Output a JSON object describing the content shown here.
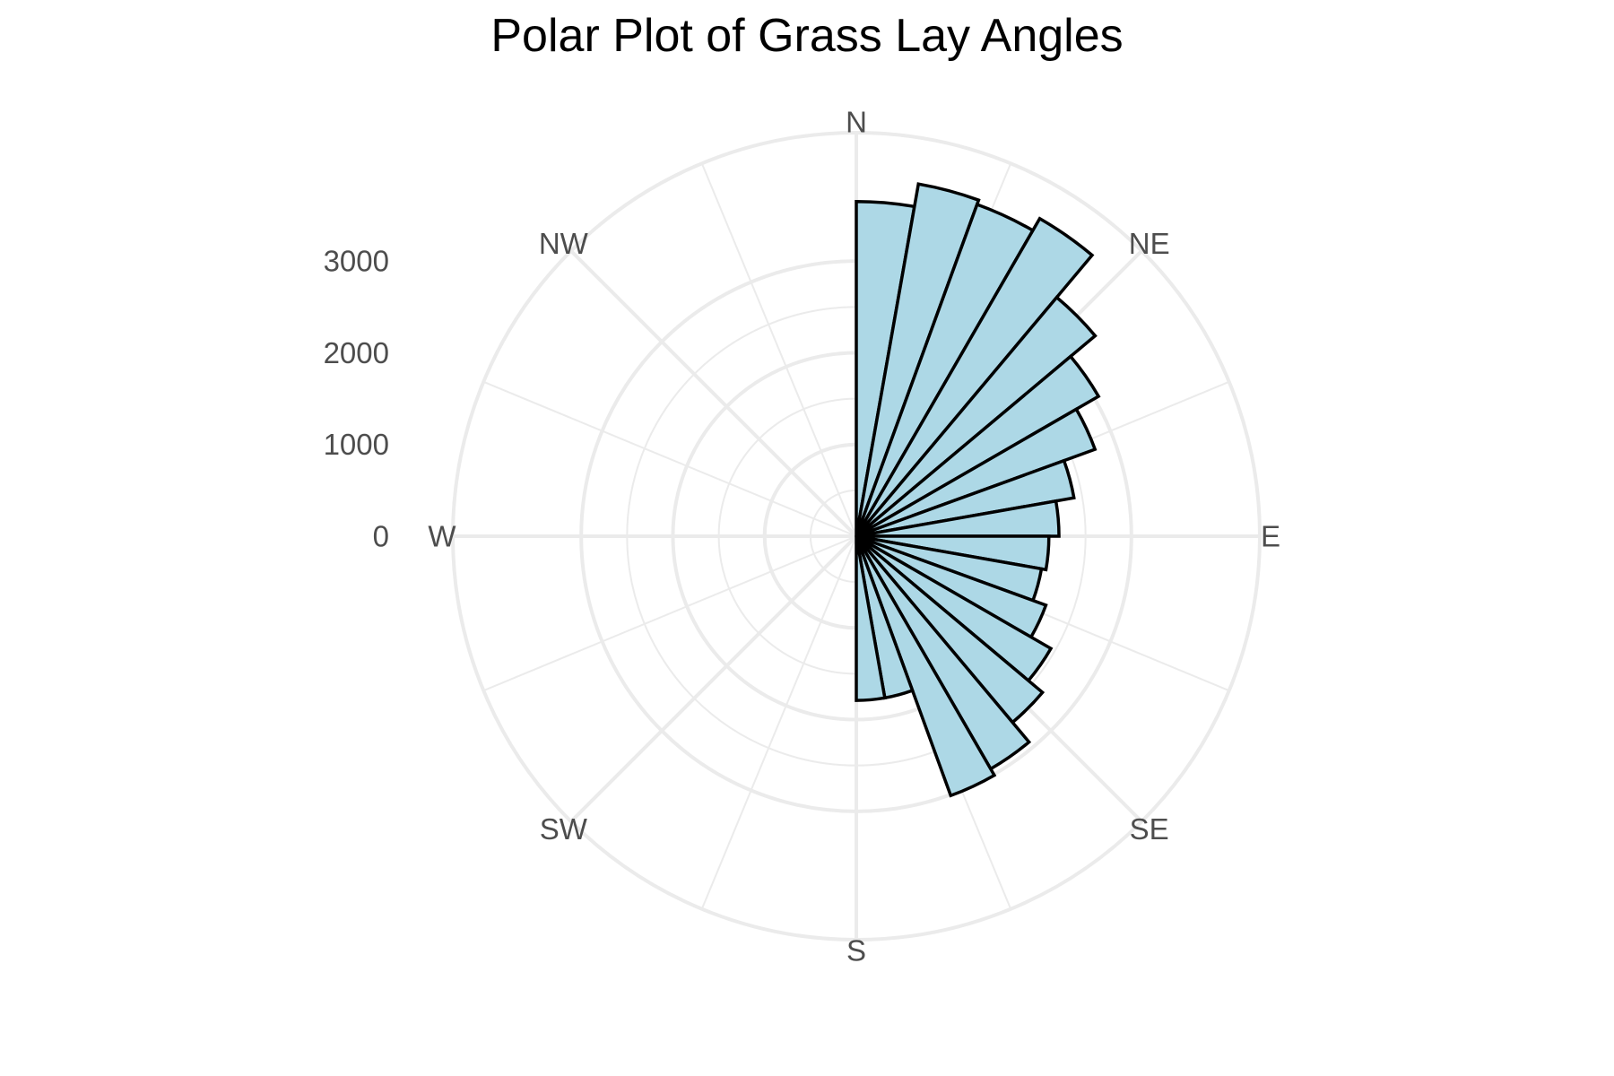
{
  "chart_data": {
    "type": "bar",
    "coordinate_system": "polar",
    "title": "Polar Plot of Grass Lay Angles",
    "xlabel": "",
    "ylabel": "",
    "x_unit": "degrees",
    "direction_labels": [
      "N",
      "NE",
      "E",
      "SE",
      "S",
      "SW",
      "W",
      "NW"
    ],
    "direction_angles": [
      0,
      45,
      90,
      135,
      180,
      225,
      270,
      315
    ],
    "radial_ticks": [
      0,
      1000,
      2000,
      3000
    ],
    "radial_tick_labels": [
      "0",
      "1000",
      "2000",
      "3000"
    ],
    "ylim": [
      0,
      4400
    ],
    "bin_width_deg": 10,
    "bin_starts": [
      0,
      10,
      20,
      30,
      40,
      50,
      60,
      70,
      80,
      90,
      100,
      110,
      120,
      130,
      140,
      150,
      160,
      170
    ],
    "values": [
      3650,
      3900,
      3850,
      4000,
      3400,
      3050,
      2770,
      2410,
      2210,
      2100,
      2050,
      2200,
      2450,
      2650,
      2930,
      3010,
      1790,
      1790
    ],
    "grid": true,
    "legend": "none",
    "colors": {
      "bar_fill": "#ADD8E6",
      "bar_stroke": "#000000",
      "grid": "#EBEBEB",
      "axis_text": "#4D4D4D",
      "title": "#000000"
    }
  }
}
